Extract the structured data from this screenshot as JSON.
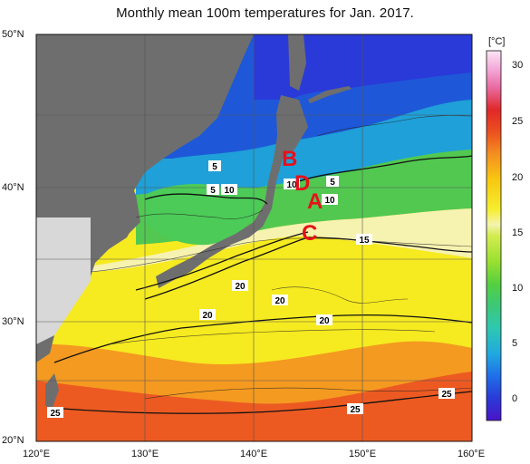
{
  "title": "Monthly mean 100m temperatures for Jan. 2017.",
  "lat_labels": [
    "50°N",
    "40°N",
    "30°N",
    "20°N"
  ],
  "lon_labels": [
    "120°E",
    "130°E",
    "140°E",
    "150°E",
    "160°E"
  ],
  "colorbar": {
    "unit": "[°C]",
    "ticks": [
      "30",
      "25",
      "20",
      "15",
      "10",
      "5",
      "0"
    ],
    "colors": [
      "#4a14c8",
      "#2a3ad8",
      "#1f6ee8",
      "#20a8e0",
      "#2ec8b0",
      "#3cc878",
      "#55d040",
      "#9ae030",
      "#d4ec50",
      "#f4f4b0",
      "#f6ee30",
      "#f8c810",
      "#f49020",
      "#ec5020",
      "#e02828",
      "#e86aa0",
      "#f4a8d8",
      "#fde6f6"
    ]
  },
  "markers": [
    {
      "id": "B",
      "label": "B"
    },
    {
      "id": "D",
      "label": "D"
    },
    {
      "id": "A",
      "label": "A"
    },
    {
      "id": "C",
      "label": "C"
    }
  ],
  "contour_labels": [
    "5",
    "5",
    "10",
    "10",
    "5",
    "10",
    "15",
    "20",
    "20",
    "20",
    "20",
    "25",
    "25",
    "25"
  ]
}
